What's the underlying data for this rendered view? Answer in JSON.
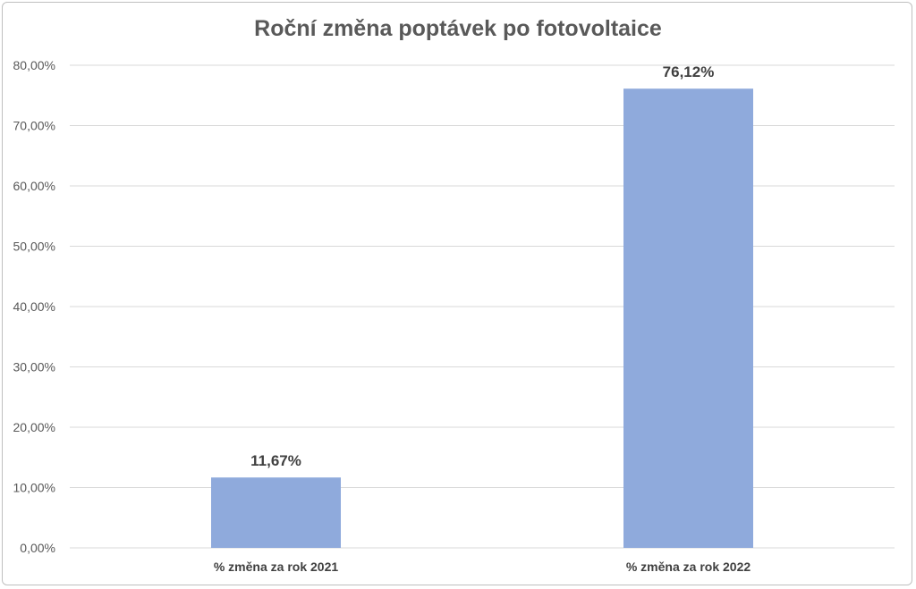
{
  "chart_data": {
    "type": "bar",
    "title": "Roční změna poptávek po fotovoltaice",
    "categories": [
      "% změna za rok 2021",
      "% změna za rok 2022"
    ],
    "values": [
      11.67,
      76.12
    ],
    "data_labels": [
      "11,67%",
      "76,12%"
    ],
    "ylim": [
      0,
      80
    ],
    "y_ticks": [
      0,
      10,
      20,
      30,
      40,
      50,
      60,
      70,
      80
    ],
    "y_tick_labels": [
      "0,00%",
      "10,00%",
      "20,00%",
      "30,00%",
      "40,00%",
      "50,00%",
      "60,00%",
      "70,00%",
      "80,00%"
    ],
    "xlabel": "",
    "ylabel": "",
    "grid": true,
    "legend": "none",
    "bar_color": "#8faadc",
    "grid_color": "#d9d9d9"
  }
}
